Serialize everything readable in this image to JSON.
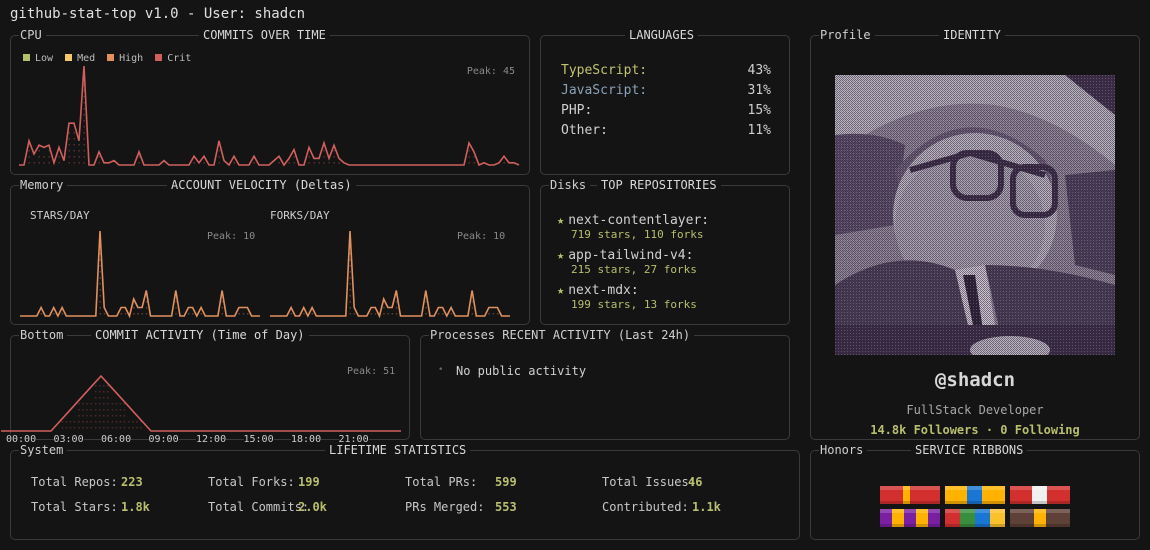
{
  "window": {
    "title": "github-stat-top v1.0 - User: shadcn"
  },
  "colors": {
    "background": "#141414",
    "border": "#3a3a3a",
    "accent_green": "#b9bf6e",
    "low": "#b3bf6a",
    "med": "#f5c86a",
    "high": "#e0915f",
    "crit": "#d0605e",
    "velocity_line": "#e0915f",
    "typescript": "#c2c46e",
    "javascript": "#8aa2b8"
  },
  "commits_panel": {
    "tag": "CPU",
    "title": "COMMITS OVER TIME",
    "legend": [
      {
        "label": "Low",
        "color": "#b3bf6a"
      },
      {
        "label": "Med",
        "color": "#f5c86a"
      },
      {
        "label": "High",
        "color": "#e0915f"
      },
      {
        "label": "Crit",
        "color": "#d0605e"
      }
    ],
    "peak_label": "Peak: 45"
  },
  "languages_panel": {
    "title": "LANGUAGES",
    "items": [
      {
        "name": "TypeScript:",
        "pct": "43%",
        "color": "#c2c46e"
      },
      {
        "name": "JavaScript:",
        "pct": "31%",
        "color": "#8aa2b8"
      },
      {
        "name": "PHP:",
        "pct": "15%",
        "color": "#d0d0d0"
      },
      {
        "name": "Other:",
        "pct": "11%",
        "color": "#d0d0d0"
      }
    ]
  },
  "identity_panel": {
    "tag": "Profile",
    "title": "IDENTITY",
    "avatar_icon": "user-avatar-dithered",
    "handle": "@shadcn",
    "role": "FullStack Developer",
    "followers": "14.8k Followers · 0 Following"
  },
  "velocity_panel": {
    "tag": "Memory",
    "title": "ACCOUNT VELOCITY (Deltas)",
    "stars_label": "STARS/DAY",
    "forks_label": "FORKS/DAY",
    "stars_peak": "Peak: 10",
    "forks_peak": "Peak: 10"
  },
  "repos_panel": {
    "tag": "Disks",
    "title": "TOP REPOSITORIES",
    "star_icon": "★",
    "items": [
      {
        "name": "next-contentlayer:",
        "stats": "719 stars, 110 forks"
      },
      {
        "name": "app-tailwind-v4:",
        "stats": "215 stars, 27 forks"
      },
      {
        "name": "next-mdx:",
        "stats": "199 stars, 13 forks"
      }
    ]
  },
  "activity_panel": {
    "tag": "Bottom",
    "title": "COMMIT ACTIVITY (Time of Day)",
    "peak_label": "Peak: 51",
    "xticks": [
      "00:00",
      "03:00",
      "06:00",
      "09:00",
      "12:00",
      "15:00",
      "18:00",
      "21:00"
    ]
  },
  "recent_panel": {
    "tag": "Processes",
    "title": "RECENT ACTIVITY (Last 24h)",
    "bullet": "•",
    "empty_text": "No public activity"
  },
  "lifetime_panel": {
    "tag": "System",
    "title": "LIFETIME STATISTICS",
    "stats": [
      {
        "label": "Total Repos:",
        "value": "223"
      },
      {
        "label": "Total Forks:",
        "value": "199"
      },
      {
        "label": "Total PRs:",
        "value": "599"
      },
      {
        "label": "Total Issues:",
        "value": "46"
      },
      {
        "label": "Total Stars:",
        "value": "1.8k"
      },
      {
        "label": "Total Commits:",
        "value": "2.0k"
      },
      {
        "label": "PRs Merged:",
        "value": "553"
      },
      {
        "label": "Contributed:",
        "value": "1.1k"
      }
    ]
  },
  "honors_panel": {
    "tag": "Honors",
    "title": "SERVICE RIBBONS",
    "ribbons": [
      {
        "name": "ribbon-1",
        "stripes": [
          [
            "#d32f2f",
            38
          ],
          [
            "#ffb300",
            12
          ],
          [
            "#d32f2f",
            50
          ]
        ]
      },
      {
        "name": "ribbon-2",
        "stripes": [
          [
            "#ffb300",
            37
          ],
          [
            "#1976d2",
            25
          ],
          [
            "#ffb300",
            38
          ]
        ]
      },
      {
        "name": "ribbon-3",
        "stripes": [
          [
            "#d32f2f",
            37
          ],
          [
            "#f0f0f0",
            25
          ],
          [
            "#d32f2f",
            38
          ]
        ]
      },
      {
        "name": "ribbon-4",
        "stripes": [
          [
            "#7b1fa2",
            20
          ],
          [
            "#ffb300",
            20
          ],
          [
            "#7b1fa2",
            20
          ],
          [
            "#ffb300",
            20
          ],
          [
            "#7b1fa2",
            20
          ]
        ]
      },
      {
        "name": "ribbon-5",
        "stripes": [
          [
            "#d32f2f",
            25
          ],
          [
            "#388e3c",
            25
          ],
          [
            "#1976d2",
            25
          ],
          [
            "#fbc02d",
            25
          ]
        ]
      },
      {
        "name": "ribbon-6",
        "stripes": [
          [
            "#5d4037",
            40
          ],
          [
            "#ffb300",
            20
          ],
          [
            "#5d4037",
            40
          ]
        ]
      }
    ]
  },
  "chart_data": [
    {
      "type": "line",
      "title": "COMMITS OVER TIME",
      "annotation": "Peak: 45",
      "legend": [
        "Low",
        "Med",
        "High",
        "Crit"
      ],
      "ylim": [
        0,
        45
      ],
      "values": [
        0,
        0,
        11,
        5,
        9,
        8,
        9,
        1,
        8,
        2,
        19,
        19,
        11,
        45,
        0,
        0,
        6,
        1,
        1,
        2,
        0,
        0,
        0,
        0,
        6,
        0,
        0,
        0,
        0,
        2,
        0,
        0,
        0,
        0,
        0,
        4,
        1,
        4,
        0,
        0,
        11,
        2,
        0,
        4,
        0,
        0,
        0,
        4,
        0,
        0,
        0,
        2,
        4,
        0,
        3,
        7,
        0,
        0,
        8,
        3,
        3,
        10,
        3,
        9,
        3,
        1,
        0,
        0,
        0,
        0,
        0,
        0,
        0,
        0,
        0,
        0,
        0,
        0,
        0,
        0,
        0,
        0,
        0,
        0,
        0,
        0,
        0,
        0,
        0,
        0,
        10,
        6,
        0,
        1,
        0,
        0,
        1,
        4,
        1,
        1,
        0
      ]
    },
    {
      "type": "line",
      "title": "STARS/DAY",
      "annotation": "Peak: 10",
      "ylim": [
        0,
        10
      ],
      "values": [
        0,
        0,
        0,
        0,
        0,
        1,
        0,
        0,
        1,
        0,
        1,
        0,
        0,
        0,
        0,
        0,
        0,
        0,
        0,
        10,
        1,
        0,
        0,
        0,
        1,
        1,
        0,
        2,
        1,
        1,
        3,
        0,
        0,
        0,
        0,
        0,
        0,
        3,
        0,
        0,
        1,
        1,
        0,
        1,
        0,
        0,
        0,
        0,
        3,
        0,
        0,
        0,
        1,
        1,
        1,
        0,
        0,
        0
      ]
    },
    {
      "type": "line",
      "title": "FORKS/DAY",
      "annotation": "Peak: 10",
      "ylim": [
        0,
        10
      ],
      "values": [
        0,
        0,
        0,
        0,
        0,
        1,
        0,
        0,
        1,
        0,
        1,
        0,
        0,
        0,
        0,
        0,
        0,
        0,
        0,
        10,
        1,
        0,
        0,
        0,
        1,
        1,
        0,
        2,
        1,
        1,
        3,
        0,
        0,
        0,
        0,
        0,
        0,
        3,
        0,
        0,
        1,
        1,
        0,
        1,
        0,
        0,
        0,
        0,
        3,
        0,
        0,
        0,
        1,
        1,
        1,
        0,
        0,
        0
      ]
    },
    {
      "type": "area",
      "title": "COMMIT ACTIVITY (Time of Day)",
      "annotation": "Peak: 51",
      "categories": [
        "00:00",
        "01:00",
        "02:00",
        "03:00",
        "04:00",
        "05:00",
        "06:00",
        "07:00",
        "08:00",
        "09:00",
        "10:00",
        "11:00",
        "12:00",
        "13:00",
        "14:00",
        "15:00",
        "16:00",
        "17:00",
        "18:00",
        "19:00",
        "20:00",
        "21:00",
        "22:00",
        "23:00"
      ],
      "values": [
        0,
        0,
        0,
        0,
        17,
        34,
        51,
        34,
        17,
        0,
        0,
        0,
        0,
        0,
        0,
        0,
        0,
        0,
        0,
        0,
        0,
        0,
        0,
        0
      ],
      "ylim": [
        0,
        51
      ]
    }
  ]
}
